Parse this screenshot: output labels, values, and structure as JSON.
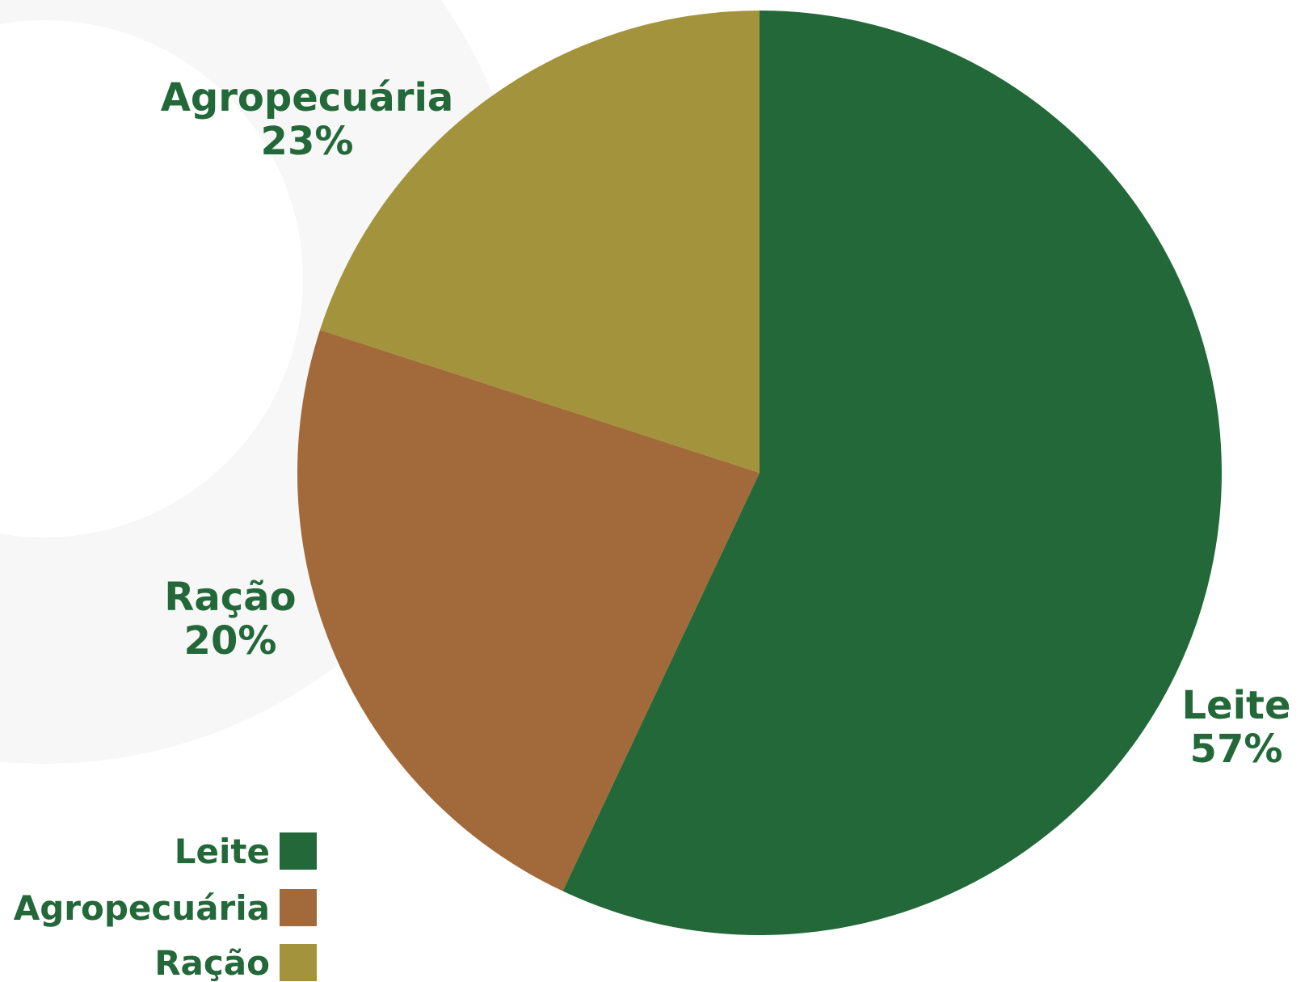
{
  "chart_data": {
    "type": "pie",
    "categories": [
      "Leite",
      "Agropecuária",
      "Ração"
    ],
    "values": [
      57,
      23,
      20
    ],
    "value_labels": [
      "57%",
      "23%",
      "20%"
    ],
    "colors": [
      "#236838",
      "#A26A3A",
      "#A3933C"
    ],
    "label_color": "#236838",
    "start_angle": "12 o'clock",
    "direction": "clockwise",
    "legend_placement": "bottom-left"
  }
}
